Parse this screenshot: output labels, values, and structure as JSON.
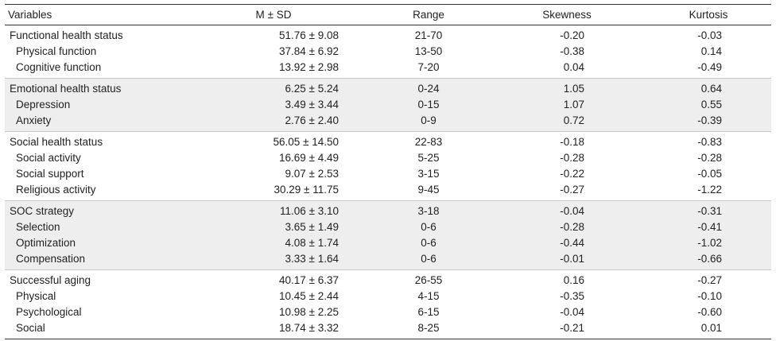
{
  "headers": {
    "variables": "Variables",
    "msd": "M ± SD",
    "range": "Range",
    "skewness": "Skewness",
    "kurtosis": "Kurtosis"
  },
  "groups": [
    {
      "rows": [
        {
          "label": "Functional health status",
          "msd": "51.76 ± 9.08",
          "range": "21-70",
          "skew": "-0.20",
          "kurt": "-0.03",
          "sub": false
        },
        {
          "label": "Physical function",
          "msd": "37.84 ± 6.92",
          "range": "13-50",
          "skew": "-0.38",
          "kurt": "0.14",
          "sub": true
        },
        {
          "label": "Cognitive function",
          "msd": "13.92 ± 2.98",
          "range": "7-20",
          "skew": "0.04",
          "kurt": "-0.49",
          "sub": true
        }
      ]
    },
    {
      "rows": [
        {
          "label": "Emotional health status",
          "msd": "6.25 ± 5.24",
          "range": "0-24",
          "skew": "1.05",
          "kurt": "0.64",
          "sub": false
        },
        {
          "label": "Depression",
          "msd": "3.49 ± 3.44",
          "range": "0-15",
          "skew": "1.07",
          "kurt": "0.55",
          "sub": true
        },
        {
          "label": "Anxiety",
          "msd": "2.76 ± 2.40",
          "range": "0-9",
          "skew": "0.72",
          "kurt": "-0.39",
          "sub": true
        }
      ]
    },
    {
      "rows": [
        {
          "label": "Social health status",
          "msd": "56.05 ± 14.50",
          "range": "22-83",
          "skew": "-0.18",
          "kurt": "-0.83",
          "sub": false
        },
        {
          "label": "Social activity",
          "msd": "16.69 ± 4.49",
          "range": "5-25",
          "skew": "-0.28",
          "kurt": "-0.28",
          "sub": true
        },
        {
          "label": "Social support",
          "msd": "9.07 ± 2.53",
          "range": "3-15",
          "skew": "-0.22",
          "kurt": "-0.05",
          "sub": true
        },
        {
          "label": "Religious activity",
          "msd": "30.29 ± 11.75",
          "range": "9-45",
          "skew": "-0.27",
          "kurt": "-1.22",
          "sub": true
        }
      ]
    },
    {
      "rows": [
        {
          "label": "SOC strategy",
          "msd": "11.06 ± 3.10",
          "range": "3-18",
          "skew": "-0.04",
          "kurt": "-0.31",
          "sub": false
        },
        {
          "label": "Selection",
          "msd": "3.65 ± 1.49",
          "range": "0-6",
          "skew": "-0.28",
          "kurt": "-0.41",
          "sub": true
        },
        {
          "label": "Optimization",
          "msd": "4.08 ± 1.74",
          "range": "0-6",
          "skew": "-0.44",
          "kurt": "-1.02",
          "sub": true
        },
        {
          "label": "Compensation",
          "msd": "3.33 ± 1.64",
          "range": "0-6",
          "skew": "-0.01",
          "kurt": "-0.66",
          "sub": true
        }
      ]
    },
    {
      "rows": [
        {
          "label": "Successful aging",
          "msd": "40.17 ± 6.37",
          "range": "26-55",
          "skew": "0.16",
          "kurt": "-0.27",
          "sub": false
        },
        {
          "label": "Physical",
          "msd": "10.45 ± 2.44",
          "range": "4-15",
          "skew": "-0.35",
          "kurt": "-0.10",
          "sub": true
        },
        {
          "label": "Psychological",
          "msd": "10.98 ± 2.25",
          "range": "6-15",
          "skew": "-0.04",
          "kurt": "-0.60",
          "sub": true
        },
        {
          "label": "Social",
          "msd": "18.74 ± 3.32",
          "range": "8-25",
          "skew": "-0.21",
          "kurt": "0.01",
          "sub": true
        }
      ]
    }
  ]
}
